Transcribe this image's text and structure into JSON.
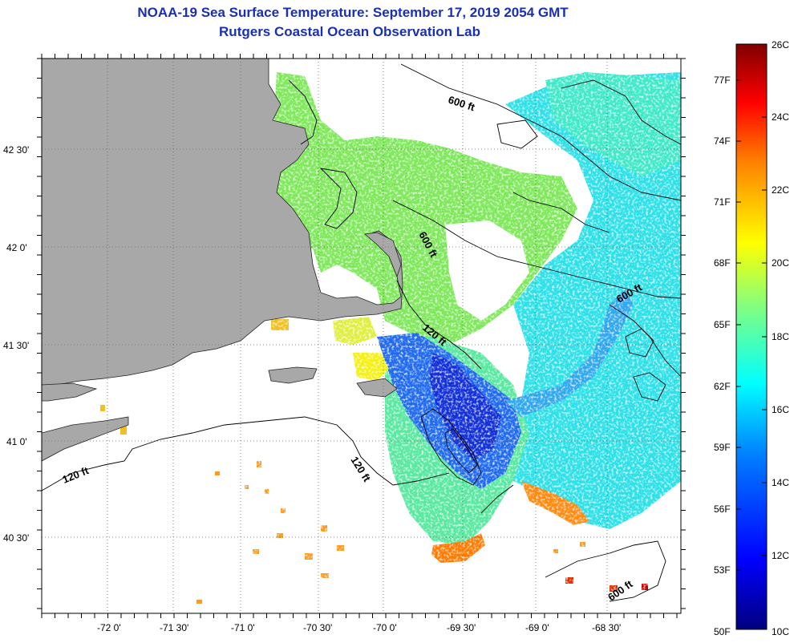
{
  "title": {
    "line1": "NOAA-19 Sea Surface Temperature:  September 17, 2019 2054 GMT",
    "line2": "Rutgers Coastal Ocean Observation Lab"
  },
  "axes": {
    "longitude_ticks": [
      "-72 0'",
      "-71 30'",
      "-71 0'",
      "-70 30'",
      "-70 0'",
      "-69 30'",
      "-69 0'",
      "-68 30'"
    ],
    "latitude_ticks": [
      "42 30'",
      "42 0'",
      "41 30'",
      "41 0'",
      "40 30'"
    ]
  },
  "isobaths": [
    {
      "text": "600 ft"
    },
    {
      "text": "600 ft"
    },
    {
      "text": "600 ft"
    },
    {
      "text": "120 ft"
    },
    {
      "text": "120 ft"
    },
    {
      "text": "120 ft"
    },
    {
      "text": "600 ft"
    }
  ],
  "colorbar": {
    "fahrenheit": [
      "77F",
      "74F",
      "71F",
      "68F",
      "65F",
      "62F",
      "59F",
      "56F",
      "53F",
      "50F"
    ],
    "celsius": [
      "26C",
      "24C",
      "22C",
      "20C",
      "18C",
      "16C",
      "14C",
      "12C",
      "10C"
    ],
    "colors": [
      "#800000",
      "#ff0000",
      "#ff8000",
      "#ffff00",
      "#80ff80",
      "#00ffff",
      "#0080ff",
      "#0000ff",
      "#000080"
    ]
  },
  "colors": {
    "land": "#a8a8a8",
    "title": "#1a2fb4",
    "cold_core": "#1a40e0",
    "warm_front": "#ff6a00"
  }
}
